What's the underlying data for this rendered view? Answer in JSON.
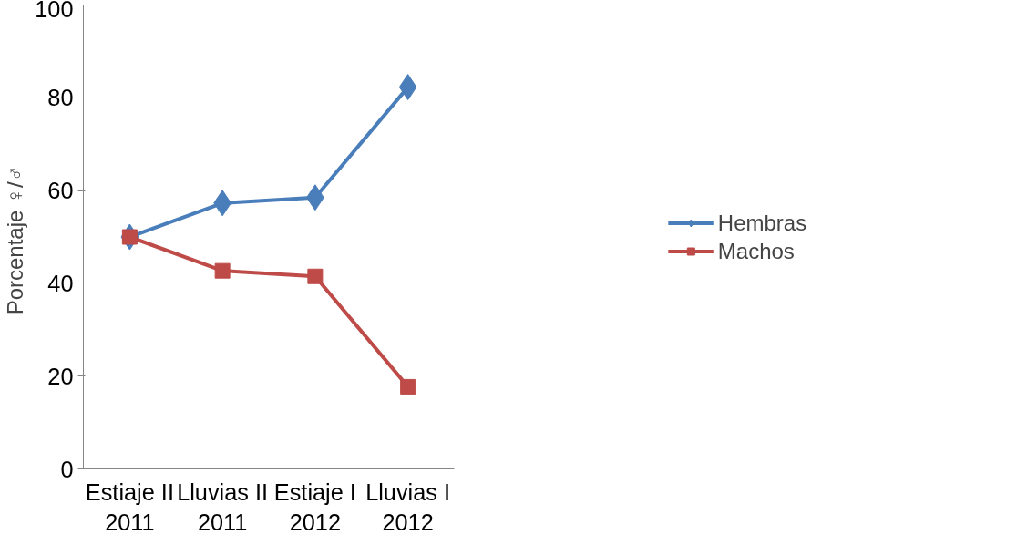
{
  "chart_data": {
    "type": "line",
    "ylabel": "Porcentaje  ♀/♂",
    "categories": [
      "Estiaje II\n2011",
      "Lluvias II\n2011",
      "Estiaje I\n2012",
      "Lluvias I\n2012"
    ],
    "series": [
      {
        "name": "Hembras",
        "color": "#4a7ebb",
        "values": [
          50,
          57.3,
          58.5,
          82.3
        ],
        "marker": "diamond"
      },
      {
        "name": "Machos",
        "color": "#be4b48",
        "values": [
          50,
          42.7,
          41.5,
          17.7
        ],
        "marker": "square"
      }
    ],
    "ylim": [
      0,
      100
    ],
    "yticks": [
      0,
      20,
      40,
      60,
      80,
      100
    ],
    "grid": false,
    "legend": "right",
    "line_style": "solid"
  }
}
